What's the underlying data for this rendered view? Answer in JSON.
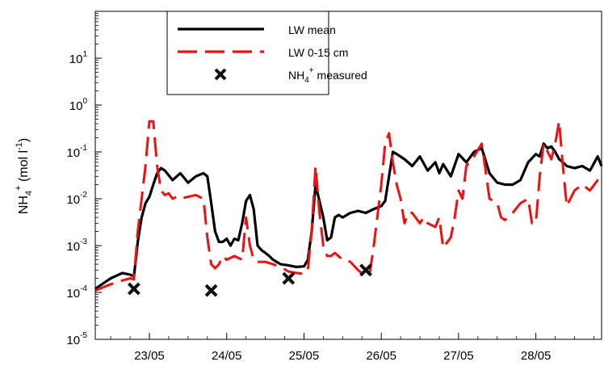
{
  "chart_data": {
    "type": "line",
    "title": "",
    "xlabel": "",
    "ylabel": {
      "base": "NH",
      "sub": "4",
      "sup": "+",
      "unit_open": " (mol l",
      "unit_sup": "-1",
      "unit_close": ")"
    },
    "xlim": [
      22.3,
      28.85
    ],
    "x_ticks": [
      {
        "value": 23,
        "label": "23/05"
      },
      {
        "value": 24,
        "label": "24/05"
      },
      {
        "value": 25,
        "label": "25/05"
      },
      {
        "value": 26,
        "label": "26/05"
      },
      {
        "value": 27,
        "label": "27/05"
      },
      {
        "value": 28,
        "label": "28/05"
      }
    ],
    "yscale": "log",
    "ylim_exp": [
      -5,
      2
    ],
    "y_ticks": [
      {
        "exp": 1,
        "base": "10",
        "sup": "1"
      },
      {
        "exp": 0,
        "base": "10",
        "sup": "0"
      },
      {
        "exp": -1,
        "base": "10",
        "sup": "-1"
      },
      {
        "exp": -2,
        "base": "10",
        "sup": "-2"
      },
      {
        "exp": -3,
        "base": "10",
        "sup": "-3"
      },
      {
        "exp": -4,
        "base": "10",
        "sup": "-4"
      },
      {
        "exp": -5,
        "base": "10",
        "sup": "-5"
      }
    ],
    "legend_position": "top-center",
    "series": [
      {
        "key": "lw_mean",
        "name": "LW mean",
        "color": "#000000",
        "style": "solid",
        "x": [
          22.3,
          22.5,
          22.65,
          22.75,
          22.8,
          22.85,
          22.9,
          22.95,
          23.0,
          23.05,
          23.1,
          23.15,
          23.2,
          23.3,
          23.4,
          23.5,
          23.6,
          23.7,
          23.75,
          23.8,
          23.85,
          23.9,
          23.95,
          24.0,
          24.05,
          24.1,
          24.15,
          24.2,
          24.25,
          24.3,
          24.35,
          24.4,
          24.45,
          24.5,
          24.55,
          24.6,
          24.7,
          24.8,
          24.9,
          25.0,
          25.05,
          25.1,
          25.15,
          25.2,
          25.25,
          25.3,
          25.35,
          25.4,
          25.45,
          25.5,
          25.6,
          25.7,
          25.8,
          25.9,
          26.0,
          26.05,
          26.1,
          26.15,
          26.2,
          26.3,
          26.4,
          26.5,
          26.6,
          26.7,
          26.75,
          26.8,
          26.9,
          27.0,
          27.1,
          27.2,
          27.3,
          27.4,
          27.5,
          27.6,
          27.7,
          27.8,
          27.9,
          28.0,
          28.05,
          28.1,
          28.15,
          28.2,
          28.25,
          28.3,
          28.35,
          28.4,
          28.5,
          28.6,
          28.7,
          28.8,
          28.85
        ],
        "y": [
          0.00012,
          0.0002,
          0.00026,
          0.00024,
          0.00022,
          0.0012,
          0.004,
          0.008,
          0.011,
          0.02,
          0.035,
          0.045,
          0.04,
          0.025,
          0.035,
          0.022,
          0.03,
          0.035,
          0.03,
          0.008,
          0.002,
          0.0012,
          0.0012,
          0.0014,
          0.001,
          0.0014,
          0.0013,
          0.003,
          0.009,
          0.012,
          0.006,
          0.001,
          0.0008,
          0.0007,
          0.0006,
          0.0005,
          0.0004,
          0.00038,
          0.00035,
          0.00036,
          0.0005,
          0.002,
          0.02,
          0.009,
          0.004,
          0.0013,
          0.0015,
          0.004,
          0.0045,
          0.004,
          0.005,
          0.0055,
          0.005,
          0.006,
          0.007,
          0.009,
          0.03,
          0.1,
          0.09,
          0.07,
          0.05,
          0.08,
          0.04,
          0.06,
          0.035,
          0.055,
          0.03,
          0.09,
          0.06,
          0.1,
          0.12,
          0.035,
          0.022,
          0.02,
          0.02,
          0.025,
          0.06,
          0.09,
          0.08,
          0.15,
          0.12,
          0.13,
          0.1,
          0.07,
          0.06,
          0.05,
          0.045,
          0.05,
          0.04,
          0.08,
          0.05
        ]
      },
      {
        "key": "lw_0_15",
        "name": "LW 0-15 cm",
        "color": "#ee1111",
        "style": "dashed",
        "x": [
          22.3,
          22.5,
          22.65,
          22.75,
          22.8,
          22.85,
          22.9,
          22.95,
          23.0,
          23.05,
          23.1,
          23.15,
          23.2,
          23.25,
          23.3,
          23.35,
          23.4,
          23.5,
          23.6,
          23.7,
          23.75,
          23.8,
          23.85,
          23.9,
          23.95,
          24.0,
          24.1,
          24.2,
          24.25,
          24.3,
          24.35,
          24.4,
          24.5,
          24.6,
          24.7,
          24.8,
          24.9,
          25.0,
          25.05,
          25.1,
          25.15,
          25.2,
          25.25,
          25.3,
          25.35,
          25.4,
          25.5,
          25.6,
          25.7,
          25.8,
          25.85,
          25.9,
          26.0,
          26.05,
          26.1,
          26.15,
          26.2,
          26.25,
          26.3,
          26.35,
          26.4,
          26.5,
          26.55,
          26.6,
          26.7,
          26.75,
          26.8,
          26.9,
          26.95,
          27.0,
          27.05,
          27.1,
          27.2,
          27.3,
          27.35,
          27.4,
          27.5,
          27.55,
          27.6,
          27.7,
          27.8,
          27.9,
          27.95,
          28.0,
          28.05,
          28.1,
          28.2,
          28.25,
          28.3,
          28.35,
          28.4,
          28.5,
          28.6,
          28.7,
          28.8,
          28.85
        ],
        "y": [
          0.00011,
          0.00015,
          0.00018,
          0.0002,
          0.00019,
          0.002,
          0.01,
          0.05,
          0.45,
          0.45,
          0.05,
          0.015,
          0.012,
          0.013,
          0.01,
          0.011,
          0.01,
          0.011,
          0.012,
          0.01,
          0.0015,
          0.0004,
          0.00033,
          0.0004,
          0.0006,
          0.0005,
          0.0006,
          0.0005,
          0.004,
          0.001,
          0.0005,
          0.00045,
          0.00045,
          0.0004,
          0.00035,
          0.00028,
          0.00026,
          0.00025,
          0.0003,
          0.002,
          0.05,
          0.005,
          0.001,
          0.0006,
          0.0006,
          0.0007,
          0.0005,
          0.00045,
          0.0003,
          0.00022,
          0.00025,
          0.0009,
          0.02,
          0.15,
          0.25,
          0.06,
          0.02,
          0.01,
          0.003,
          0.005,
          0.005,
          0.003,
          0.004,
          0.003,
          0.0025,
          0.004,
          0.0009,
          0.0015,
          0.004,
          0.015,
          0.01,
          0.05,
          0.08,
          0.15,
          0.04,
          0.01,
          0.008,
          0.004,
          0.0035,
          0.005,
          0.008,
          0.01,
          0.003,
          0.003,
          0.03,
          0.15,
          0.07,
          0.15,
          0.45,
          0.05,
          0.007,
          0.015,
          0.02,
          0.015,
          0.025,
          0.025
        ]
      }
    ],
    "markers": {
      "name": {
        "base": "NH",
        "sub": "4",
        "sup": "+",
        "tail": " measured"
      },
      "color": "#111111",
      "points": [
        {
          "x": 22.8,
          "y": 0.00012
        },
        {
          "x": 23.8,
          "y": 0.00011
        },
        {
          "x": 24.8,
          "y": 0.0002
        },
        {
          "x": 25.8,
          "y": 0.0003
        }
      ]
    }
  }
}
